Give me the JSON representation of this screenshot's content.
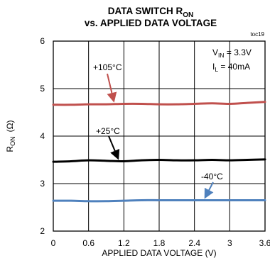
{
  "figure_id": "toc19",
  "chart_data": {
    "type": "line",
    "title_line1": "DATA SWITCH R",
    "title_line1_sub": "ON",
    "title_line2": "vs. APPLIED DATA VOLTAGE",
    "xlabel": "APPLIED DATA VOLTAGE (V)",
    "ylabel_main": "R",
    "ylabel_sub": "ON",
    "ylabel_unit": "(Ω)",
    "xlim": [
      0,
      3.6
    ],
    "ylim": [
      2,
      6
    ],
    "x_ticks": [
      "0",
      "0.6",
      "1.2",
      "1.8",
      "2.4",
      "3",
      "3.6"
    ],
    "y_ticks": [
      "2",
      "3",
      "4",
      "5",
      "6"
    ],
    "grid": true,
    "conditions": {
      "vin_main": "V",
      "vin_sub": "IN",
      "vin_value": " = 3.3V",
      "il_main": "I",
      "il_sub": "L",
      "il_value": " = 40mA"
    },
    "series": [
      {
        "name": "+105°C",
        "color": "#c0504d",
        "x": [
          0,
          0.3,
          0.6,
          0.9,
          1.2,
          1.5,
          1.8,
          2.1,
          2.4,
          2.7,
          3.0,
          3.3,
          3.6
        ],
        "y": [
          4.66,
          4.66,
          4.67,
          4.67,
          4.68,
          4.68,
          4.67,
          4.67,
          4.68,
          4.69,
          4.68,
          4.7,
          4.72
        ]
      },
      {
        "name": "+25°C",
        "color": "#000000",
        "x": [
          0,
          0.3,
          0.6,
          0.9,
          1.2,
          1.5,
          1.8,
          2.1,
          2.4,
          2.7,
          3.0,
          3.3,
          3.6
        ],
        "y": [
          3.46,
          3.47,
          3.49,
          3.48,
          3.47,
          3.49,
          3.5,
          3.49,
          3.49,
          3.5,
          3.49,
          3.5,
          3.51
        ]
      },
      {
        "name": "-40°C",
        "color": "#4f81bd",
        "x": [
          0,
          0.3,
          0.6,
          0.9,
          1.2,
          1.5,
          1.8,
          2.1,
          2.4,
          2.7,
          3.0,
          3.3,
          3.6
        ],
        "y": [
          2.64,
          2.64,
          2.63,
          2.63,
          2.64,
          2.65,
          2.65,
          2.65,
          2.65,
          2.65,
          2.65,
          2.65,
          2.65
        ]
      }
    ]
  }
}
